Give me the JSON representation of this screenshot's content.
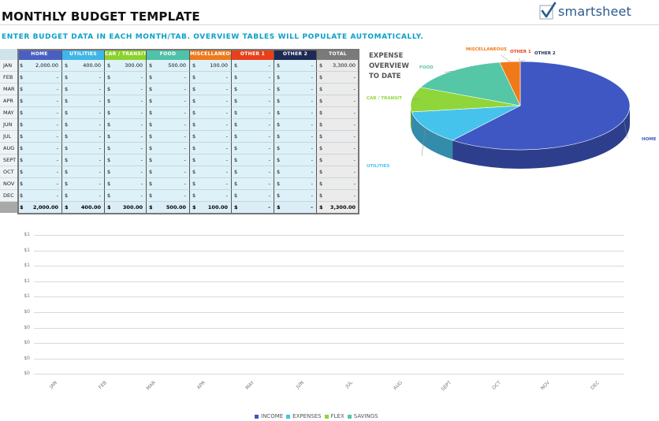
{
  "header": {
    "title": "MONTHLY BUDGET TEMPLATE",
    "brand": "smartsheet",
    "instruction": "ENTER BUDGET DATA IN EACH MONTH/TAB. OVERVIEW TABLES WILL POPULATE AUTOMATICALLY."
  },
  "table": {
    "columns": [
      {
        "label": "HOME",
        "color": "#4a5fc1"
      },
      {
        "label": "UTILITIES",
        "color": "#3fb6e8"
      },
      {
        "label": "CAR / TRANSIT",
        "color": "#8bd32a"
      },
      {
        "label": "FOOD",
        "color": "#4fc2a8"
      },
      {
        "label": "MISCELLANEOUS",
        "color": "#f07a1a"
      },
      {
        "label": "OTHER 1",
        "color": "#e8401c"
      },
      {
        "label": "OTHER 2",
        "color": "#1d2a55"
      },
      {
        "label": "TOTAL",
        "color": "#7a7a7a"
      }
    ],
    "currency": "$",
    "rows": [
      {
        "month": "JAN",
        "values": [
          "2,000.00",
          "400.00",
          "300.00",
          "500.00",
          "100.00",
          "-",
          "-",
          "3,300.00"
        ]
      },
      {
        "month": "FEB",
        "values": [
          "-",
          "-",
          "-",
          "-",
          "-",
          "-",
          "-",
          "-"
        ]
      },
      {
        "month": "MAR",
        "values": [
          "-",
          "-",
          "-",
          "-",
          "-",
          "-",
          "-",
          "-"
        ]
      },
      {
        "month": "APR",
        "values": [
          "-",
          "-",
          "-",
          "-",
          "-",
          "-",
          "-",
          "-"
        ]
      },
      {
        "month": "MAY",
        "values": [
          "-",
          "-",
          "-",
          "-",
          "-",
          "-",
          "-",
          "-"
        ]
      },
      {
        "month": "JUN",
        "values": [
          "-",
          "-",
          "-",
          "-",
          "-",
          "-",
          "-",
          "-"
        ]
      },
      {
        "month": "JUL",
        "values": [
          "-",
          "-",
          "-",
          "-",
          "-",
          "-",
          "-",
          "-"
        ]
      },
      {
        "month": "AUG",
        "values": [
          "-",
          "-",
          "-",
          "-",
          "-",
          "-",
          "-",
          "-"
        ]
      },
      {
        "month": "SEPT",
        "values": [
          "-",
          "-",
          "-",
          "-",
          "-",
          "-",
          "-",
          "-"
        ]
      },
      {
        "month": "OCT",
        "values": [
          "-",
          "-",
          "-",
          "-",
          "-",
          "-",
          "-",
          "-"
        ]
      },
      {
        "month": "NOV",
        "values": [
          "-",
          "-",
          "-",
          "-",
          "-",
          "-",
          "-",
          "-"
        ]
      },
      {
        "month": "DEC",
        "values": [
          "-",
          "-",
          "-",
          "-",
          "-",
          "-",
          "-",
          "-"
        ]
      }
    ],
    "totals": [
      "2,000.00",
      "400.00",
      "300.00",
      "500.00",
      "100.00",
      "-",
      "-",
      "3,300.00"
    ]
  },
  "chart_data": [
    {
      "type": "pie",
      "title": "EXPENSE OVERVIEW TO DATE",
      "categories": [
        "HOME",
        "UTILITIES",
        "CAR / TRANSIT",
        "FOOD",
        "MISCELLANEOUS",
        "OTHER 1",
        "OTHER 2"
      ],
      "values": [
        2000,
        400,
        300,
        500,
        100,
        0,
        0
      ],
      "colors": [
        "#3e57c2",
        "#46c3ec",
        "#8fd63a",
        "#55c6a6",
        "#f07a1a",
        "#e8401c",
        "#1d2a55"
      ],
      "label_colors": [
        "#3e57c2",
        "#46c3ec",
        "#8fd63a",
        "#55c6a6",
        "#f07a1a",
        "#e8401c",
        "#1d2a55"
      ]
    },
    {
      "type": "line",
      "categories": [
        "JAN",
        "FEB",
        "MAR",
        "APR",
        "MAY",
        "JUN",
        "JUL",
        "AUG",
        "SEPT",
        "OCT",
        "NOV",
        "DEC"
      ],
      "y_tick_labels": [
        "$1",
        "$1",
        "$1",
        "$1",
        "$1",
        "$0",
        "$0",
        "$0",
        "$0",
        "$0"
      ],
      "series": [
        {
          "name": "INCOME",
          "color": "#3e57c2",
          "values": [
            0,
            0,
            0,
            0,
            0,
            0,
            0,
            0,
            0,
            0,
            0,
            0
          ]
        },
        {
          "name": "EXPENSES",
          "color": "#46c3ec",
          "values": [
            0,
            0,
            0,
            0,
            0,
            0,
            0,
            0,
            0,
            0,
            0,
            0
          ]
        },
        {
          "name": "FLEX",
          "color": "#8fd63a",
          "values": [
            0,
            0,
            0,
            0,
            0,
            0,
            0,
            0,
            0,
            0,
            0,
            0
          ]
        },
        {
          "name": "SAVINGS",
          "color": "#55c6a6",
          "values": [
            0,
            0,
            0,
            0,
            0,
            0,
            0,
            0,
            0,
            0,
            0,
            0
          ]
        }
      ],
      "grid": true,
      "legend_position": "bottom"
    }
  ]
}
